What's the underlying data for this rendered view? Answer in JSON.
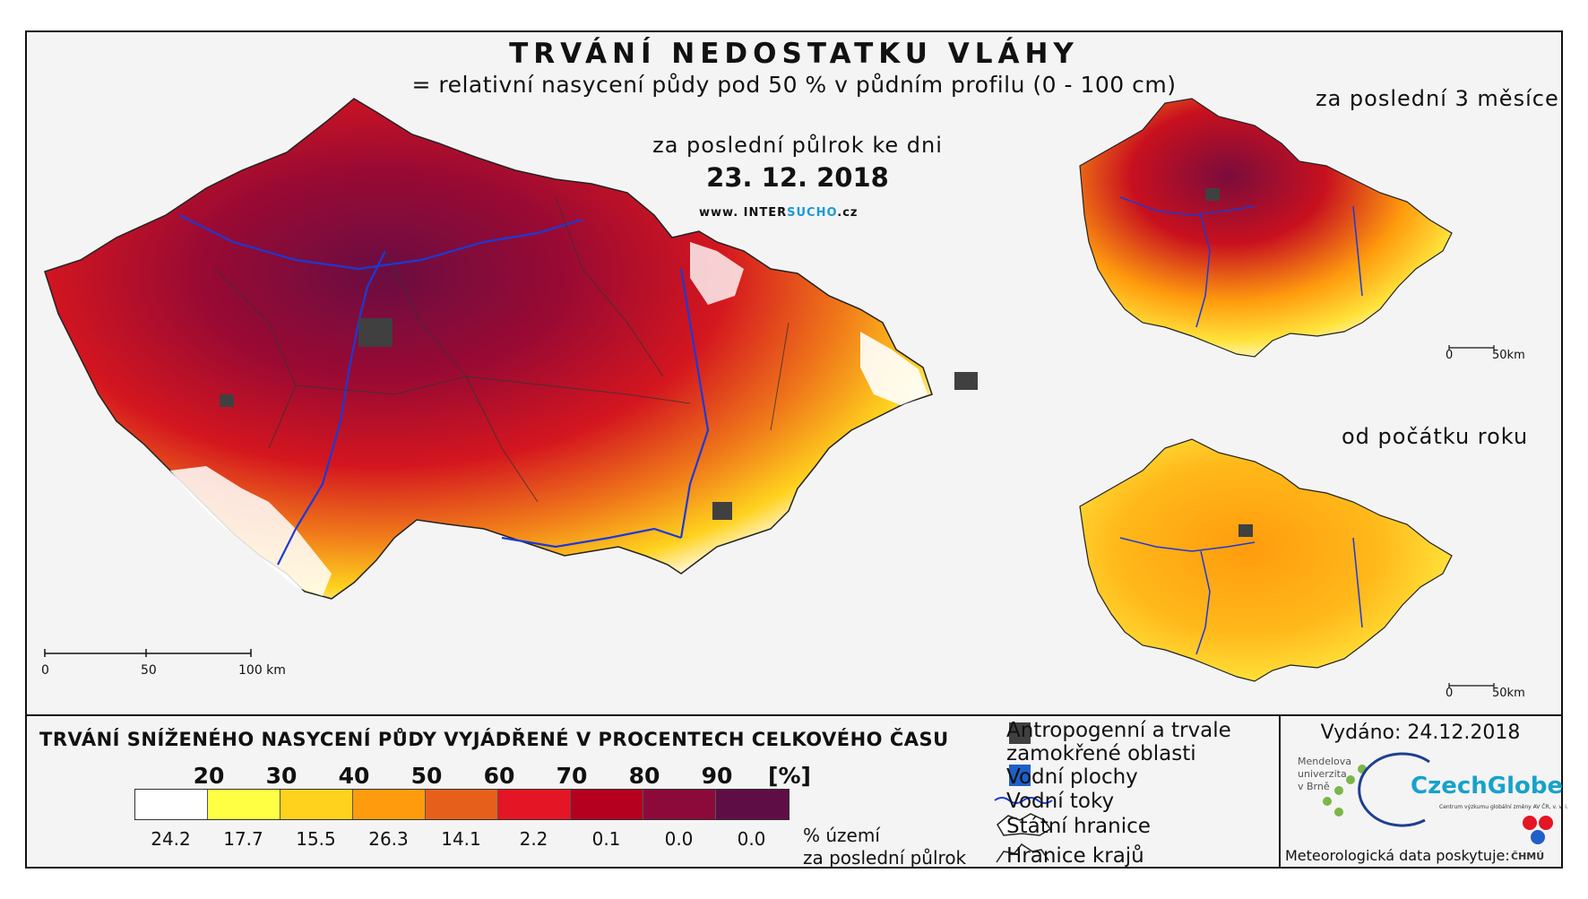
{
  "title": "TRVÁNÍ NEDOSTATKU VLÁHY",
  "subtitle": "= relativní nasycení půdy pod 50 % v půdním profilu (0 - 100 cm)",
  "period_label": "za poslední půlrok ke dni",
  "date": "23. 12. 2018",
  "website": {
    "prefix": "www. INTER",
    "highlight": "SUCHO",
    "suffix": ".cz"
  },
  "insets": {
    "top_title": "za poslední 3 měsíce",
    "bottom_title": "od počátku roku",
    "scale": {
      "zero": "0",
      "fifty": "50km"
    }
  },
  "main_scale": {
    "zero": "0",
    "fifty": "50",
    "hundred": "100 km"
  },
  "legend": {
    "title": "TRVÁNÍ SNÍŽENÉHO NASYCENÍ PŮDY VYJÁDŘENÉ V PROCENTECH CELKOVÉHO ČASU",
    "thresholds": [
      "20",
      "30",
      "40",
      "50",
      "60",
      "70",
      "80",
      "90",
      "[%]"
    ],
    "colors": [
      "#ffffff",
      "#ffff44",
      "#ffd21e",
      "#ff9c0e",
      "#e6601c",
      "#e41524",
      "#b5001f",
      "#8c0a3a",
      "#5f0d45"
    ],
    "percentages": [
      "24.2",
      "17.7",
      "15.5",
      "26.3",
      "14.1",
      "2.2",
      "0.1",
      "0.0",
      "0.0"
    ],
    "note_line1": "% území",
    "note_line2": "za poslední půlrok"
  },
  "key": {
    "anthropogenic_line1": "Antropogenní a trvale",
    "anthropogenic_line2": "zamokřené oblasti",
    "water_bodies": "Vodní plochy",
    "rivers": "Vodní toky",
    "state_border": "Státní hranice",
    "region_border": "Hranice krajů",
    "anthropogenic_color": "#404040",
    "water_color": "#1f5fc8",
    "river_color": "#1a3ad8"
  },
  "issued": "Vydáno: 24.12.2018",
  "mendel": {
    "line1": "Mendelova",
    "line2": "univerzita",
    "line3": "v Brně"
  },
  "czechglobe": {
    "name": "CzechGlobe",
    "sub": "Centrum výzkumu globální změny AV ČR, v. v. i."
  },
  "meteo": "Meteorologická data poskytuje:",
  "chmu": "ČHMÚ"
}
